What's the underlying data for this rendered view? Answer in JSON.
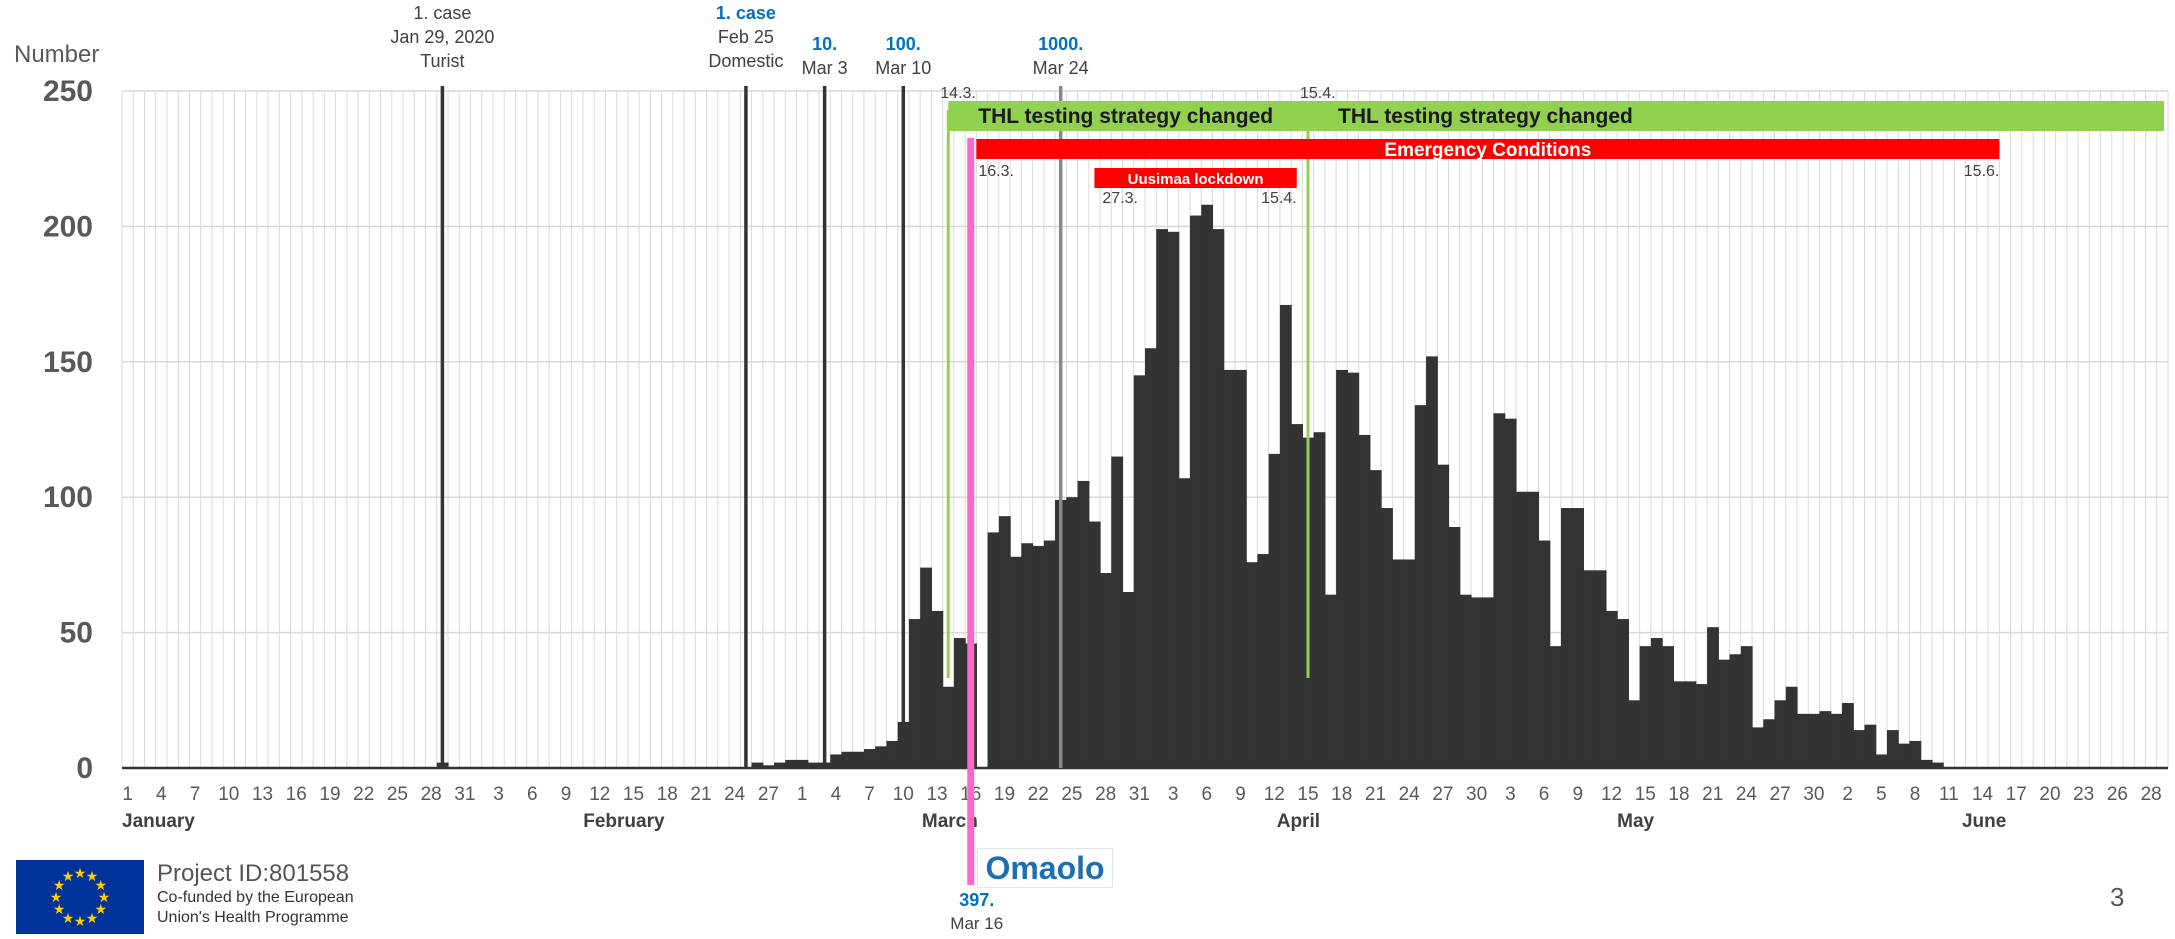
{
  "chart_data": {
    "type": "bar",
    "ylabel": "Number",
    "ylim": [
      0,
      250
    ],
    "yticks": [
      0,
      50,
      100,
      150,
      200,
      250
    ],
    "start_date": "2020-01-01",
    "end_date": "2020-06-30",
    "grid": true,
    "x_tick_labels": [
      "1",
      "4",
      "7",
      "10",
      "13",
      "16",
      "19",
      "22",
      "25",
      "28",
      "31",
      "3",
      "6",
      "9",
      "12",
      "15",
      "18",
      "21",
      "24",
      "27",
      "1",
      "4",
      "7",
      "10",
      "13",
      "16",
      "19",
      "22",
      "25",
      "28",
      "31",
      "3",
      "6",
      "9",
      "12",
      "15",
      "18",
      "21",
      "24",
      "27",
      "30",
      "3",
      "6",
      "9",
      "12",
      "15",
      "18",
      "21",
      "24",
      "27",
      "30",
      "2",
      "5",
      "8",
      "11",
      "14",
      "17",
      "20",
      "23",
      "26",
      "28"
    ],
    "months": [
      "January",
      "February",
      "March",
      "April",
      "May",
      "June"
    ],
    "values": [
      {
        "date": "2020-01-29",
        "value": 2
      },
      {
        "date": "2020-02-26",
        "value": 2
      },
      {
        "date": "2020-02-27",
        "value": 1
      },
      {
        "date": "2020-02-28",
        "value": 2
      },
      {
        "date": "2020-02-29",
        "value": 3
      },
      {
        "date": "2020-03-01",
        "value": 3
      },
      {
        "date": "2020-03-02",
        "value": 2
      },
      {
        "date": "2020-03-03",
        "value": 2
      },
      {
        "date": "2020-03-04",
        "value": 5
      },
      {
        "date": "2020-03-05",
        "value": 6
      },
      {
        "date": "2020-03-06",
        "value": 6
      },
      {
        "date": "2020-03-07",
        "value": 7
      },
      {
        "date": "2020-03-08",
        "value": 8
      },
      {
        "date": "2020-03-09",
        "value": 10
      },
      {
        "date": "2020-03-10",
        "value": 17
      },
      {
        "date": "2020-03-11",
        "value": 55
      },
      {
        "date": "2020-03-12",
        "value": 74
      },
      {
        "date": "2020-03-13",
        "value": 58
      },
      {
        "date": "2020-03-14",
        "value": 30
      },
      {
        "date": "2020-03-15",
        "value": 48
      },
      {
        "date": "2020-03-16",
        "value": 46
      },
      {
        "date": "2020-03-17",
        "value": 0
      },
      {
        "date": "2020-03-18",
        "value": 87
      },
      {
        "date": "2020-03-19",
        "value": 93
      },
      {
        "date": "2020-03-20",
        "value": 78
      },
      {
        "date": "2020-03-21",
        "value": 83
      },
      {
        "date": "2020-03-22",
        "value": 82
      },
      {
        "date": "2020-03-23",
        "value": 84
      },
      {
        "date": "2020-03-24",
        "value": 99
      },
      {
        "date": "2020-03-25",
        "value": 100
      },
      {
        "date": "2020-03-26",
        "value": 106
      },
      {
        "date": "2020-03-27",
        "value": 91
      },
      {
        "date": "2020-03-28",
        "value": 72
      },
      {
        "date": "2020-03-29",
        "value": 115
      },
      {
        "date": "2020-03-30",
        "value": 65
      },
      {
        "date": "2020-03-31",
        "value": 145
      },
      {
        "date": "2020-04-01",
        "value": 155
      },
      {
        "date": "2020-04-02",
        "value": 199
      },
      {
        "date": "2020-04-03",
        "value": 198
      },
      {
        "date": "2020-04-04",
        "value": 107
      },
      {
        "date": "2020-04-05",
        "value": 204
      },
      {
        "date": "2020-04-06",
        "value": 208
      },
      {
        "date": "2020-04-07",
        "value": 199
      },
      {
        "date": "2020-04-08",
        "value": 147
      },
      {
        "date": "2020-04-09",
        "value": 147
      },
      {
        "date": "2020-04-10",
        "value": 76
      },
      {
        "date": "2020-04-11",
        "value": 79
      },
      {
        "date": "2020-04-12",
        "value": 116
      },
      {
        "date": "2020-04-13",
        "value": 171
      },
      {
        "date": "2020-04-14",
        "value": 127
      },
      {
        "date": "2020-04-15",
        "value": 122
      },
      {
        "date": "2020-04-16",
        "value": 124
      },
      {
        "date": "2020-04-17",
        "value": 64
      },
      {
        "date": "2020-04-18",
        "value": 147
      },
      {
        "date": "2020-04-19",
        "value": 146
      },
      {
        "date": "2020-04-20",
        "value": 123
      },
      {
        "date": "2020-04-21",
        "value": 110
      },
      {
        "date": "2020-04-22",
        "value": 96
      },
      {
        "date": "2020-04-23",
        "value": 77
      },
      {
        "date": "2020-04-24",
        "value": 77
      },
      {
        "date": "2020-04-25",
        "value": 134
      },
      {
        "date": "2020-04-26",
        "value": 152
      },
      {
        "date": "2020-04-27",
        "value": 112
      },
      {
        "date": "2020-04-28",
        "value": 89
      },
      {
        "date": "2020-04-29",
        "value": 64
      },
      {
        "date": "2020-04-30",
        "value": 63
      },
      {
        "date": "2020-05-01",
        "value": 63
      },
      {
        "date": "2020-05-02",
        "value": 131
      },
      {
        "date": "2020-05-03",
        "value": 129
      },
      {
        "date": "2020-05-04",
        "value": 102
      },
      {
        "date": "2020-05-05",
        "value": 102
      },
      {
        "date": "2020-05-06",
        "value": 84
      },
      {
        "date": "2020-05-07",
        "value": 45
      },
      {
        "date": "2020-05-08",
        "value": 96
      },
      {
        "date": "2020-05-09",
        "value": 96
      },
      {
        "date": "2020-05-10",
        "value": 73
      },
      {
        "date": "2020-05-11",
        "value": 73
      },
      {
        "date": "2020-05-12",
        "value": 58
      },
      {
        "date": "2020-05-13",
        "value": 55
      },
      {
        "date": "2020-05-14",
        "value": 25
      },
      {
        "date": "2020-05-15",
        "value": 45
      },
      {
        "date": "2020-05-16",
        "value": 48
      },
      {
        "date": "2020-05-17",
        "value": 45
      },
      {
        "date": "2020-05-18",
        "value": 32
      },
      {
        "date": "2020-05-19",
        "value": 32
      },
      {
        "date": "2020-05-20",
        "value": 31
      },
      {
        "date": "2020-05-21",
        "value": 52
      },
      {
        "date": "2020-05-22",
        "value": 40
      },
      {
        "date": "2020-05-23",
        "value": 42
      },
      {
        "date": "2020-05-24",
        "value": 45
      },
      {
        "date": "2020-05-25",
        "value": 15
      },
      {
        "date": "2020-05-26",
        "value": 18
      },
      {
        "date": "2020-05-27",
        "value": 25
      },
      {
        "date": "2020-05-28",
        "value": 30
      },
      {
        "date": "2020-05-29",
        "value": 20
      },
      {
        "date": "2020-05-30",
        "value": 20
      },
      {
        "date": "2020-05-31",
        "value": 21
      },
      {
        "date": "2020-06-01",
        "value": 20
      },
      {
        "date": "2020-06-02",
        "value": 24
      },
      {
        "date": "2020-06-03",
        "value": 14
      },
      {
        "date": "2020-06-04",
        "value": 16
      },
      {
        "date": "2020-06-05",
        "value": 5
      },
      {
        "date": "2020-06-06",
        "value": 14
      },
      {
        "date": "2020-06-07",
        "value": 9
      },
      {
        "date": "2020-06-08",
        "value": 10
      },
      {
        "date": "2020-06-09",
        "value": 3
      },
      {
        "date": "2020-06-10",
        "value": 2
      }
    ],
    "annotations": {
      "vlines": [
        {
          "date": "2020-01-29",
          "color": "#333333",
          "labels": [
            {
              "text": "1. case",
              "blue": false
            },
            {
              "text": "Jan 29, 2020",
              "blue": false
            },
            {
              "text": "Turist",
              "blue": false
            }
          ]
        },
        {
          "date": "2020-02-25",
          "color": "#333333",
          "labels": [
            {
              "text": "1. case",
              "blue": true
            },
            {
              "text": "Feb 25",
              "blue": false
            },
            {
              "text": "Domestic",
              "blue": false
            }
          ]
        },
        {
          "date": "2020-03-03",
          "color": "#333333",
          "labels": [
            {
              "text": "10.",
              "blue": true
            },
            {
              "text": "Mar 3",
              "blue": false
            }
          ]
        },
        {
          "date": "2020-03-10",
          "color": "#333333",
          "labels": [
            {
              "text": "100.",
              "blue": true
            },
            {
              "text": "Mar 10",
              "blue": false
            }
          ]
        },
        {
          "date": "2020-03-24",
          "color": "#888888",
          "labels": [
            {
              "text": "1000.",
              "blue": true
            },
            {
              "text": "Mar 24",
              "blue": false
            }
          ]
        }
      ],
      "thl": [
        {
          "start": "2020-03-14",
          "label": "THL testing strategy changed",
          "date_label": "14.3."
        },
        {
          "start": "2020-04-15",
          "label": "THL testing strategy changed",
          "date_label": "15.4."
        }
      ],
      "emergency": {
        "start": "2020-03-16",
        "end": "2020-06-15",
        "label": "Emergency Conditions",
        "start_label": "16.3.",
        "end_label": "15.6."
      },
      "lockdown": {
        "start": "2020-03-27",
        "end": "2020-04-15",
        "label": "Uusimaa lockdown",
        "start_label": "27.3.",
        "end_label": "15.4."
      },
      "omaolo": {
        "date": "2020-03-16",
        "count_label": "397.",
        "date_label": "Mar 16",
        "logo_text": "Omaolo",
        "color": "#ff66cc"
      }
    }
  },
  "footer": {
    "project_id": "Project ID:801558",
    "cofunded_line1": "Co-funded by the European",
    "cofunded_line2": "Union's Health Programme",
    "page_number": "3"
  },
  "colors": {
    "bars": "#333333",
    "grid": "#d9d9d9",
    "thl": "#92d050",
    "emergency": "#ff0000",
    "blue_text": "#0070c0",
    "eu_blue": "#003399",
    "eu_star": "#ffcc00"
  }
}
